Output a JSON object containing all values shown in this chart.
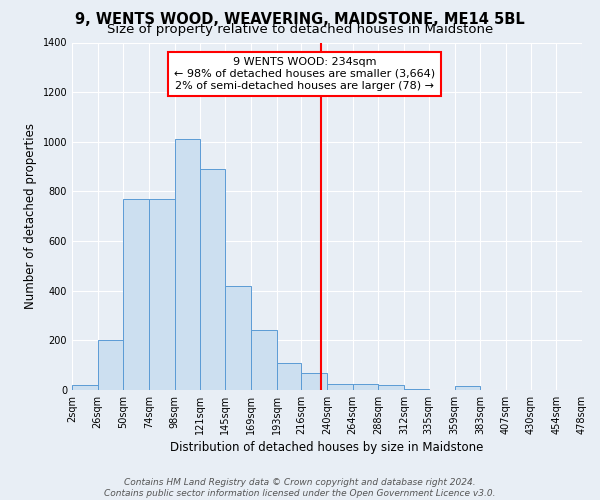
{
  "title": "9, WENTS WOOD, WEAVERING, MAIDSTONE, ME14 5BL",
  "subtitle": "Size of property relative to detached houses in Maidstone",
  "xlabel": "Distribution of detached houses by size in Maidstone",
  "ylabel": "Number of detached properties",
  "bin_labels": [
    "2sqm",
    "26sqm",
    "50sqm",
    "74sqm",
    "98sqm",
    "121sqm",
    "145sqm",
    "169sqm",
    "193sqm",
    "216sqm",
    "240sqm",
    "264sqm",
    "288sqm",
    "312sqm",
    "335sqm",
    "359sqm",
    "383sqm",
    "407sqm",
    "430sqm",
    "454sqm",
    "478sqm"
  ],
  "bar_values": [
    20,
    200,
    770,
    770,
    1010,
    890,
    420,
    240,
    110,
    70,
    25,
    25,
    20,
    5,
    0,
    15,
    0,
    0,
    0,
    0
  ],
  "bin_edges": [
    2,
    26,
    50,
    74,
    98,
    121,
    145,
    169,
    193,
    216,
    240,
    264,
    288,
    312,
    335,
    359,
    383,
    407,
    430,
    454,
    478
  ],
  "bar_color": "#ccdff0",
  "bar_edgecolor": "#5b9bd5",
  "vline_x": 234,
  "vline_color": "red",
  "annotation_line1": "9 WENTS WOOD: 234sqm",
  "annotation_line2": "← 98% of detached houses are smaller (3,664)",
  "annotation_line3": "2% of semi-detached houses are larger (78) →",
  "annotation_box_color": "white",
  "annotation_box_edgecolor": "red",
  "ylim": [
    0,
    1400
  ],
  "yticks": [
    0,
    200,
    400,
    600,
    800,
    1000,
    1200,
    1400
  ],
  "background_color": "#e8eef5",
  "footer_line1": "Contains HM Land Registry data © Crown copyright and database right 2024.",
  "footer_line2": "Contains public sector information licensed under the Open Government Licence v3.0.",
  "title_fontsize": 10.5,
  "subtitle_fontsize": 9.5,
  "axis_label_fontsize": 8.5,
  "tick_fontsize": 7,
  "annotation_fontsize": 8,
  "footer_fontsize": 6.5
}
